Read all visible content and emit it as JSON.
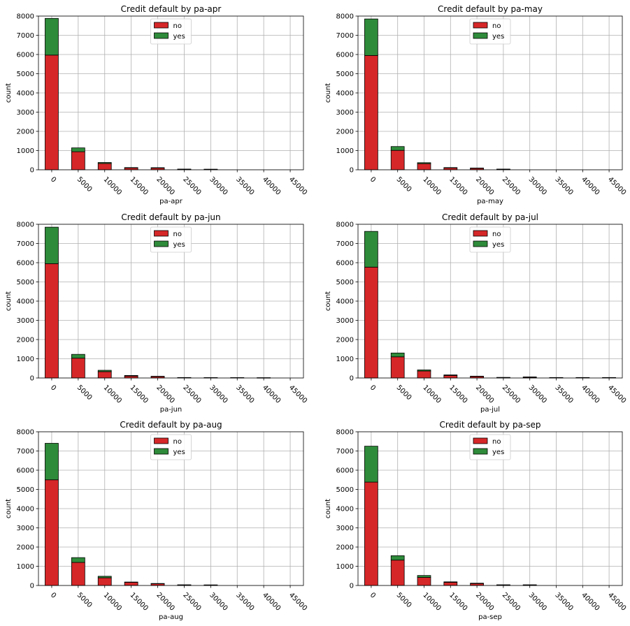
{
  "chart_data": [
    {
      "type": "bar",
      "stacked": true,
      "title": "Credit default by pa-apr",
      "xlabel": "pa-apr",
      "ylabel": "count",
      "categories": [
        "0",
        "5000",
        "10000",
        "15000",
        "20000",
        "25000",
        "30000",
        "35000",
        "40000",
        "45000"
      ],
      "ylim": [
        0,
        8000
      ],
      "yticks": [
        "0",
        "1000",
        "2000",
        "3000",
        "4000",
        "5000",
        "6000",
        "7000",
        "8000"
      ],
      "grid": true,
      "legend": "upper-center",
      "series": [
        {
          "name": "no",
          "color": "#d62728",
          "values": [
            5970,
            940,
            330,
            100,
            90,
            30,
            25,
            0,
            0,
            0
          ]
        },
        {
          "name": "yes",
          "color": "#2e8b3a",
          "values": [
            1910,
            200,
            50,
            15,
            20,
            5,
            5,
            0,
            0,
            0
          ]
        }
      ]
    },
    {
      "type": "bar",
      "stacked": true,
      "title": "Credit default by pa-may",
      "xlabel": "pa-may",
      "ylabel": "count",
      "categories": [
        "0",
        "5000",
        "10000",
        "15000",
        "20000",
        "25000",
        "30000",
        "35000",
        "40000",
        "45000"
      ],
      "ylim": [
        0,
        8000
      ],
      "yticks": [
        "0",
        "1000",
        "2000",
        "3000",
        "4000",
        "5000",
        "6000",
        "7000",
        "8000"
      ],
      "grid": true,
      "legend": "upper-center",
      "series": [
        {
          "name": "no",
          "color": "#d62728",
          "values": [
            5950,
            1010,
            320,
            100,
            80,
            30,
            0,
            0,
            0,
            0
          ]
        },
        {
          "name": "yes",
          "color": "#2e8b3a",
          "values": [
            1900,
            200,
            50,
            15,
            10,
            5,
            0,
            0,
            0,
            0
          ]
        }
      ]
    },
    {
      "type": "bar",
      "stacked": true,
      "title": "Credit default by pa-jun",
      "xlabel": "pa-jun",
      "ylabel": "count",
      "categories": [
        "0",
        "5000",
        "10000",
        "15000",
        "20000",
        "25000",
        "30000",
        "35000",
        "40000",
        "45000"
      ],
      "ylim": [
        0,
        8000
      ],
      "yticks": [
        "0",
        "1000",
        "2000",
        "3000",
        "4000",
        "5000",
        "6000",
        "7000",
        "8000"
      ],
      "grid": true,
      "legend": "upper-center",
      "series": [
        {
          "name": "no",
          "color": "#d62728",
          "values": [
            5950,
            1030,
            330,
            100,
            70,
            20,
            15,
            15,
            10,
            0
          ]
        },
        {
          "name": "yes",
          "color": "#2e8b3a",
          "values": [
            1900,
            200,
            70,
            30,
            20,
            5,
            5,
            5,
            5,
            0
          ]
        }
      ]
    },
    {
      "type": "bar",
      "stacked": true,
      "title": "Credit default by pa-jul",
      "xlabel": "pa-jul",
      "ylabel": "count",
      "categories": [
        "0",
        "5000",
        "10000",
        "15000",
        "20000",
        "25000",
        "30000",
        "35000",
        "40000",
        "45000"
      ],
      "ylim": [
        0,
        8000
      ],
      "yticks": [
        "0",
        "1000",
        "2000",
        "3000",
        "4000",
        "5000",
        "6000",
        "7000",
        "8000"
      ],
      "grid": true,
      "legend": "upper-center",
      "series": [
        {
          "name": "no",
          "color": "#d62728",
          "values": [
            5770,
            1100,
            360,
            130,
            80,
            25,
            45,
            20,
            20,
            20
          ]
        },
        {
          "name": "yes",
          "color": "#2e8b3a",
          "values": [
            1860,
            200,
            60,
            30,
            15,
            5,
            10,
            5,
            5,
            5
          ]
        }
      ]
    },
    {
      "type": "bar",
      "stacked": true,
      "title": "Credit default by pa-aug",
      "xlabel": "pa-aug",
      "ylabel": "count",
      "categories": [
        "0",
        "5000",
        "10000",
        "15000",
        "20000",
        "25000",
        "30000",
        "35000",
        "40000",
        "45000"
      ],
      "ylim": [
        0,
        8000
      ],
      "yticks": [
        "0",
        "1000",
        "2000",
        "3000",
        "4000",
        "5000",
        "6000",
        "7000",
        "8000"
      ],
      "grid": true,
      "legend": "upper-center",
      "series": [
        {
          "name": "no",
          "color": "#d62728",
          "values": [
            5500,
            1200,
            400,
            160,
            90,
            30,
            25,
            0,
            0,
            0
          ]
        },
        {
          "name": "yes",
          "color": "#2e8b3a",
          "values": [
            1900,
            250,
            80,
            20,
            15,
            5,
            5,
            0,
            0,
            0
          ]
        }
      ]
    },
    {
      "type": "bar",
      "stacked": true,
      "title": "Credit default by pa-sep",
      "xlabel": "pa-sep",
      "ylabel": "count",
      "categories": [
        "0",
        "5000",
        "10000",
        "15000",
        "20000",
        "25000",
        "30000",
        "35000",
        "40000",
        "45000"
      ],
      "ylim": [
        0,
        8000
      ],
      "yticks": [
        "0",
        "1000",
        "2000",
        "3000",
        "4000",
        "5000",
        "6000",
        "7000",
        "8000"
      ],
      "grid": true,
      "legend": "upper-center",
      "series": [
        {
          "name": "no",
          "color": "#d62728",
          "values": [
            5380,
            1320,
            420,
            160,
            100,
            30,
            30,
            0,
            0,
            0
          ]
        },
        {
          "name": "yes",
          "color": "#2e8b3a",
          "values": [
            1870,
            230,
            100,
            30,
            20,
            5,
            5,
            0,
            0,
            0
          ]
        }
      ]
    }
  ]
}
